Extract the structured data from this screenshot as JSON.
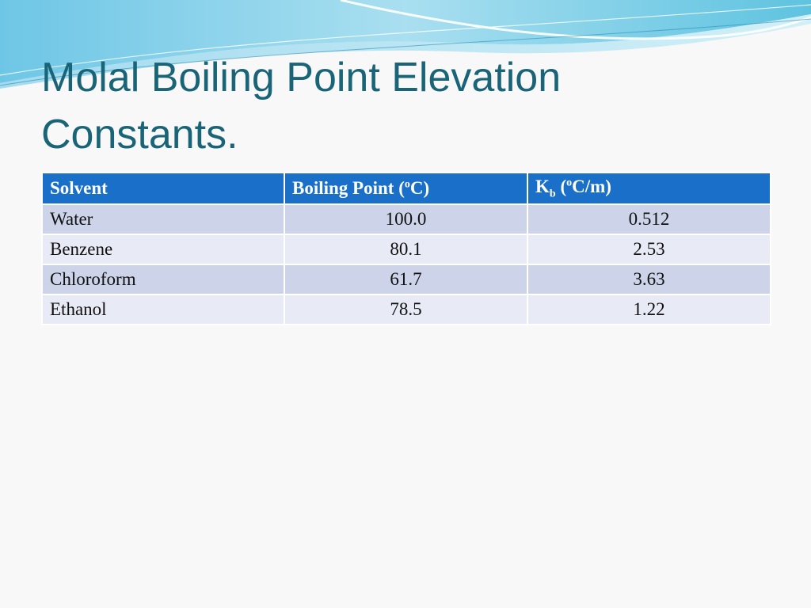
{
  "slide": {
    "title_line1": "Molal Boiling Point Elevation",
    "title_line2": "Constants."
  },
  "table": {
    "headers": {
      "solvent": "Solvent",
      "boiling_point_prefix": "Boiling Point (",
      "boiling_point_sup": "o",
      "boiling_point_suffix": "C)",
      "kb_main": "K",
      "kb_sub": "b",
      "kb_open": " (",
      "kb_sup": "o",
      "kb_suffix": "C/m)"
    },
    "rows": [
      {
        "solvent": "Water",
        "boiling_point": "100.0",
        "kb": "0.512"
      },
      {
        "solvent": "Benzene",
        "boiling_point": "80.1",
        "kb": "2.53"
      },
      {
        "solvent": "Chloroform",
        "boiling_point": "61.7",
        "kb": "3.63"
      },
      {
        "solvent": "Ethanol",
        "boiling_point": "78.5",
        "kb": "1.22"
      }
    ]
  },
  "colors": {
    "title": "#1a6478",
    "header_bg": "#1a70c8",
    "row_odd": "#cdd4ea",
    "row_even": "#e8ebf5"
  }
}
